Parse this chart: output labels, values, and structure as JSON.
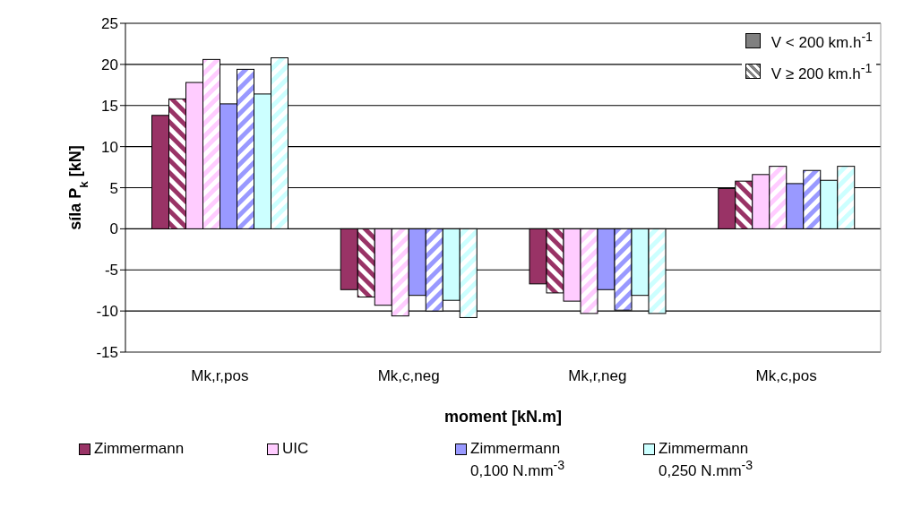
{
  "chart_data": {
    "type": "bar",
    "xlabel": "moment [kN.m]",
    "ylabel": "síla P$_{k}$ [kN]",
    "categories": [
      "Mk,r,pos",
      "Mk,c,neg",
      "Mk,r,neg",
      "Mk,c,pos"
    ],
    "series": [
      {
        "name": "Zimmermann",
        "color": "#993366",
        "values": [
          13.8,
          -7.4,
          -6.7,
          4.9
        ]
      },
      {
        "color": "#993366",
        "values": [
          15.8,
          -8.3,
          -7.8,
          5.8
        ]
      },
      {
        "name": "UIC",
        "color": "#ffccff",
        "values": [
          17.8,
          -9.3,
          -8.8,
          6.6
        ]
      },
      {
        "color": "#ffccff",
        "values": [
          20.6,
          -10.6,
          -10.3,
          7.6
        ]
      },
      {
        "name": "Zimmermann 0,100 N.mm$^{-3}$",
        "color": "#9999ff",
        "values": [
          15.2,
          -8.1,
          -7.4,
          5.5
        ]
      },
      {
        "color": "#9999ff",
        "values": [
          19.4,
          -10.0,
          -9.9,
          7.1
        ]
      },
      {
        "name": "Zimmermann 0,250 N.mm$^{-3}$",
        "color": "#ccffff",
        "values": [
          16.4,
          -8.7,
          -8.1,
          5.9
        ]
      },
      {
        "color": "#ccffff",
        "values": [
          20.8,
          -10.8,
          -10.3,
          7.6
        ]
      }
    ],
    "annotations": [
      "V < 200 km.h$^{-1}$",
      "V ≥ 200 km.h$^{-1}$"
    ],
    "ylim": [
      -15,
      25
    ],
    "yticks": [
      -15,
      -10,
      -5,
      0,
      5,
      10,
      15,
      20,
      25
    ],
    "grid": "y",
    "legend": "bottom"
  }
}
